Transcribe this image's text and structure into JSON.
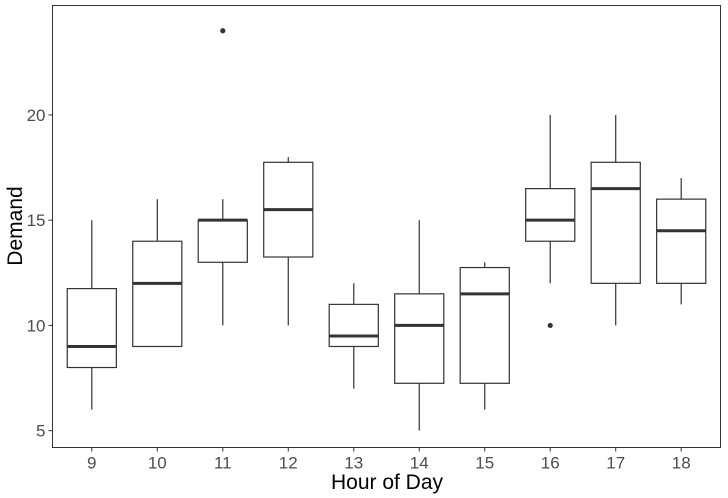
{
  "chart_data": {
    "type": "boxplot",
    "xlabel": "Hour of Day",
    "ylabel": "Demand",
    "ylim": [
      4.2,
      25.2
    ],
    "yticks": [
      5,
      10,
      15,
      20
    ],
    "grid": false,
    "colors": {
      "box_fill": "#ffffff",
      "stroke": "#333333",
      "panel_border": "#333333",
      "tick_label": "#4d4d4d"
    },
    "boxes": [
      {
        "category": "9",
        "whisker_low": 6,
        "q1": 8,
        "median": 9,
        "q3": 11.75,
        "whisker_high": 15,
        "outliers": []
      },
      {
        "category": "10",
        "whisker_low": 9,
        "q1": 9,
        "median": 12,
        "q3": 14,
        "whisker_high": 16,
        "outliers": []
      },
      {
        "category": "11",
        "whisker_low": 10,
        "q1": 13,
        "median": 15,
        "q3": 15,
        "whisker_high": 16,
        "outliers": [
          24
        ]
      },
      {
        "category": "12",
        "whisker_low": 10,
        "q1": 13.25,
        "median": 15.5,
        "q3": 17.75,
        "whisker_high": 18,
        "outliers": []
      },
      {
        "category": "13",
        "whisker_low": 7,
        "q1": 9,
        "median": 9.5,
        "q3": 11,
        "whisker_high": 12,
        "outliers": []
      },
      {
        "category": "14",
        "whisker_low": 5,
        "q1": 7.25,
        "median": 10,
        "q3": 11.5,
        "whisker_high": 15,
        "outliers": []
      },
      {
        "category": "15",
        "whisker_low": 6,
        "q1": 7.25,
        "median": 11.5,
        "q3": 12.75,
        "whisker_high": 13,
        "outliers": []
      },
      {
        "category": "16",
        "whisker_low": 12,
        "q1": 14,
        "median": 15,
        "q3": 16.5,
        "whisker_high": 20,
        "outliers": [
          10
        ]
      },
      {
        "category": "17",
        "whisker_low": 10,
        "q1": 12,
        "median": 16.5,
        "q3": 17.75,
        "whisker_high": 20,
        "outliers": []
      },
      {
        "category": "18",
        "whisker_low": 11,
        "q1": 12,
        "median": 14.5,
        "q3": 16,
        "whisker_high": 17,
        "outliers": []
      }
    ]
  }
}
